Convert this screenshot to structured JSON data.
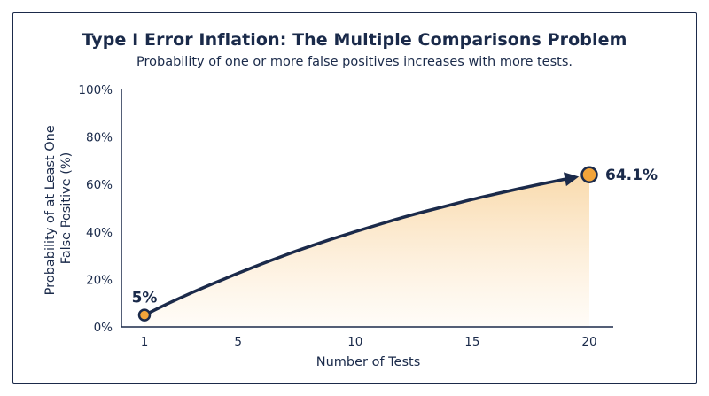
{
  "chart_data": {
    "type": "area",
    "title": "Type I Error Inflation: The Multiple Comparisons Problem",
    "subtitle": "Probability of one or more false positives increases with more tests.",
    "xlabel": "Number of Tests",
    "ylabel_lines": [
      "Probability of at Least One",
      "False Positive (%)"
    ],
    "x": [
      1,
      2,
      3,
      4,
      5,
      6,
      7,
      8,
      9,
      10,
      11,
      12,
      13,
      14,
      15,
      16,
      17,
      18,
      19,
      20
    ],
    "values": [
      5,
      9.8,
      14.3,
      18.5,
      22.6,
      26.5,
      30.2,
      33.7,
      37.0,
      40.1,
      43.1,
      46.0,
      48.7,
      51.2,
      53.7,
      56.0,
      58.2,
      60.3,
      62.3,
      64.1
    ],
    "xlim": [
      1,
      20
    ],
    "ylim": [
      0,
      100
    ],
    "x_ticks": [
      1,
      5,
      10,
      15,
      20
    ],
    "y_ticks": [
      0,
      20,
      40,
      60,
      80,
      100
    ],
    "y_tick_labels": [
      "0%",
      "20%",
      "40%",
      "60%",
      "80%",
      "100%"
    ],
    "highlighted_points": [
      {
        "x": 1,
        "y": 5,
        "label": "5%"
      },
      {
        "x": 20,
        "y": 64.1,
        "label": "64.1%"
      }
    ],
    "grid": false,
    "colors": {
      "line": "#1b2a4a",
      "marker_fill": "#f2a43a",
      "area_top": "#f9d8a8",
      "area_bottom": "#fffaf3"
    }
  }
}
